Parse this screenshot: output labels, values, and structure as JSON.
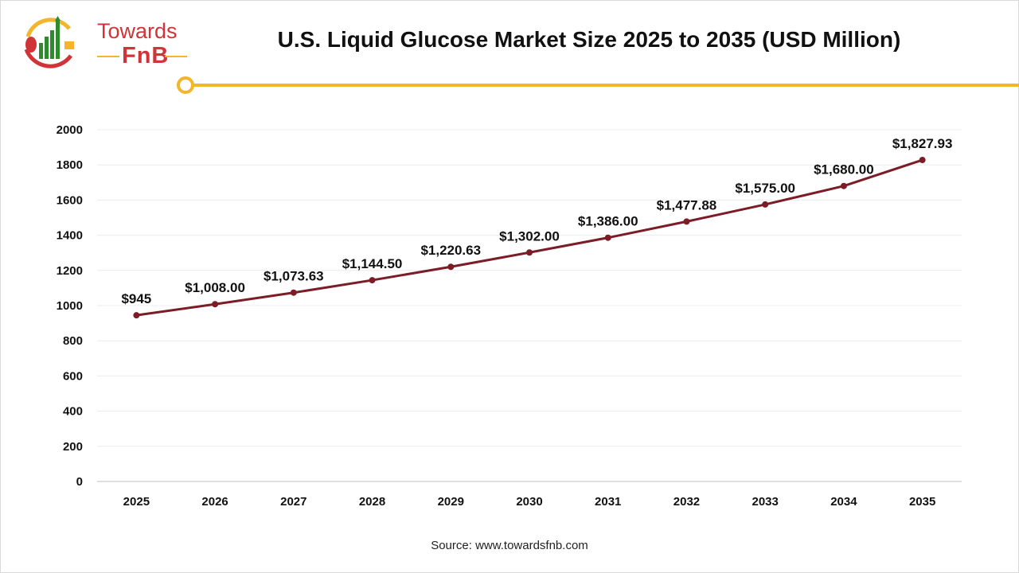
{
  "logo": {
    "line1": "Towards",
    "line2": "FnB"
  },
  "title": "U.S. Liquid Glucose Market Size 2025 to 2035 (USD Million)",
  "source": "Source: www.towardsfnb.com",
  "colors": {
    "line": "#7b1c26",
    "accent": "#f2b52c",
    "brand_red": "#d13438",
    "brand_green": "#2e8b2e"
  },
  "chart_data": {
    "type": "line",
    "title": "U.S. Liquid Glucose Market Size 2025 to 2035 (USD Million)",
    "xlabel": "",
    "ylabel": "",
    "categories": [
      "2025",
      "2026",
      "2027",
      "2028",
      "2029",
      "2030",
      "2031",
      "2032",
      "2033",
      "2034",
      "2035"
    ],
    "values": [
      945,
      1008.0,
      1073.63,
      1144.5,
      1220.63,
      1302.0,
      1386.0,
      1477.88,
      1575.0,
      1680.0,
      1827.93
    ],
    "data_labels": [
      "$945",
      "$1,008.00",
      "$1,073.63",
      "$1,144.50",
      "$1,220.63",
      "$1,302.00",
      "$1,386.00",
      "$1,477.88",
      "$1,575.00",
      "$1,680.00",
      "$1,827.93"
    ],
    "ylim": [
      0,
      2000
    ],
    "yticks": [
      0,
      200,
      400,
      600,
      800,
      1000,
      1200,
      1400,
      1600,
      1800,
      2000
    ],
    "grid": true,
    "legend": "none"
  }
}
